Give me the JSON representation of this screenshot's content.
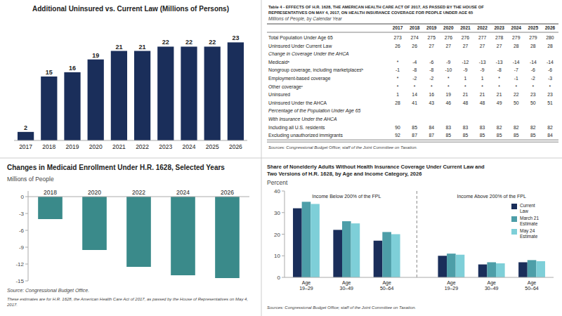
{
  "chart_data": [
    {
      "type": "bar",
      "title": "Additional Uninsured vs. Current Law (Millions of Persons)",
      "categories": [
        "2017",
        "2018",
        "2019",
        "2020",
        "2021",
        "2022",
        "2023",
        "2024",
        "2025",
        "2026"
      ],
      "values": [
        2,
        15,
        16,
        19,
        21,
        21,
        22,
        22,
        22,
        23
      ],
      "color": "#1a2e5a",
      "ylim": [
        0,
        28
      ],
      "data_labels": true,
      "tick_labels": "x"
    },
    {
      "type": "table",
      "title": "Table 4 - EFFECTS OF H.R. 1628, THE AMERICAN HEALTH CARE ACT OF 2017, AS PASSED BY THE HOUSE OF\nREPRESENTATIVES ON MAY 4, 2017, ON HEALTH INSURANCE COVERAGE FOR PEOPLE UNDER AGE 65",
      "subtitle": "Millions of People, by Calendar Year",
      "columns": [
        "2017",
        "2018",
        "2019",
        "2020",
        "2021",
        "2022",
        "2023",
        "2024",
        "2025",
        "2026"
      ],
      "rows": [
        {
          "label": "Total Population Under Age 65",
          "values": [
            273,
            274,
            275,
            276,
            276,
            277,
            278,
            279,
            279,
            280
          ]
        },
        {
          "label": "Uninsured Under Current Law",
          "values": [
            26,
            26,
            27,
            27,
            27,
            27,
            27,
            28,
            28,
            28
          ]
        },
        {
          "label": "Change in Coverage Under the AHCA",
          "values": [
            null,
            null,
            null,
            null,
            null,
            null,
            null,
            null,
            null,
            null
          ]
        },
        {
          "label": "Medicaidᵃ",
          "values": [
            "*",
            -4,
            -6,
            -9,
            -12,
            -13,
            -13,
            -14,
            -14,
            -14
          ]
        },
        {
          "label": "Nongroup coverage, including marketplacesᵇ",
          "values": [
            -1,
            -8,
            -8,
            -10,
            -9,
            -9,
            -8,
            -7,
            -6,
            -6
          ]
        },
        {
          "label": "Employment-based coverage",
          "values": [
            "*",
            -2,
            -2,
            "*",
            1,
            1,
            "*",
            -1,
            -2,
            -3
          ]
        },
        {
          "label": "Other coverageᶜ",
          "values": [
            "*",
            "*",
            "*",
            "*",
            "*",
            "*",
            "*",
            "*",
            "*",
            "*"
          ]
        },
        {
          "label": "Uninsured",
          "values": [
            1,
            14,
            16,
            19,
            21,
            21,
            21,
            22,
            23,
            23
          ]
        },
        {
          "label": "Uninsured Under the AHCA",
          "values": [
            28,
            41,
            43,
            46,
            48,
            48,
            49,
            50,
            50,
            51
          ]
        },
        {
          "label": "Percentage of the Population Under Age 65",
          "values": [
            null,
            null,
            null,
            null,
            null,
            null,
            null,
            null,
            null,
            null
          ]
        },
        {
          "label": "With Insurance Under the AHCA",
          "values": [
            null,
            null,
            null,
            null,
            null,
            null,
            null,
            null,
            null,
            null
          ]
        },
        {
          "label": "Including all U.S. residents",
          "values": [
            90,
            85,
            84,
            83,
            83,
            83,
            82,
            82,
            82,
            82
          ]
        },
        {
          "label": "Excluding unauthorized immigrants",
          "values": [
            92,
            87,
            87,
            85,
            85,
            85,
            85,
            85,
            85,
            84
          ]
        }
      ],
      "source": "Sources: Congressional Budget Office; staff of the Joint Committee on Taxation."
    },
    {
      "type": "bar",
      "title": "Changes in Medicaid Enrollment Under H.R. 1628, Selected Years",
      "subtitle": "Millions of People",
      "categories": [
        "2018",
        "2020",
        "2022",
        "2024",
        "2026"
      ],
      "values": [
        -4,
        -9.5,
        -12.5,
        -14,
        -14.5
      ],
      "color": "#3a8a8a",
      "ylim": [
        -15,
        1
      ],
      "yticks": [
        0,
        -3,
        -6,
        -9,
        -12,
        -15
      ],
      "source": "Source: Congressional Budget Office.",
      "note": "These estimates are for H.R. 1628, the American Health Care Act of 2017, as passed by the House of Representatives on May 4, 2017."
    },
    {
      "type": "bar",
      "title": "Share of Nonelderly Adults Without Health Insurance Coverage Under Current Law and\nTwo Versions of H.R. 1628, by Age and Income Category, 2026",
      "subtitle": "Percent",
      "categories": [
        "Age\n19–29",
        "Age\n30–49",
        "Age\n50–64",
        "Age\n19–29",
        "Age\n30–49",
        "Age\n50–64"
      ],
      "group_labels": [
        "Income Below 200% of the FPL",
        "Income Above 200% of the FPL"
      ],
      "series": [
        {
          "name": "Current\nLaw",
          "color": "#1a2e5a",
          "values": [
            32,
            22,
            17,
            10,
            6,
            7
          ]
        },
        {
          "name": "March 21\nEstimate",
          "color": "#4d9ea8",
          "values": [
            35,
            26,
            21,
            11,
            7,
            8
          ]
        },
        {
          "name": "May 24\nEstimate",
          "color": "#7ecfd8",
          "values": [
            34,
            25,
            20,
            10.5,
            6.5,
            7.5
          ]
        }
      ],
      "ylim": [
        0,
        40
      ],
      "yticks": [
        0,
        10,
        20,
        30,
        40
      ],
      "legend": "upper right",
      "source": "Sources: Congressional Budget Office; staff of the Joint Committee on Taxation."
    }
  ]
}
